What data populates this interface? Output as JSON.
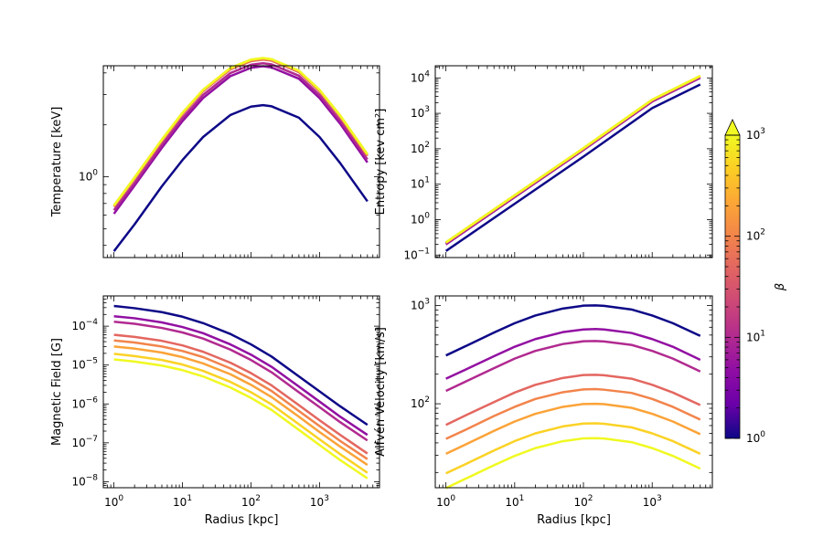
{
  "colors": {
    "beta_palette": [
      "#0d0887",
      "#6a00a8",
      "#8f0da4",
      "#b12a90",
      "#cc4778",
      "#e16462",
      "#f2844b",
      "#fca636",
      "#fcce25",
      "#f0f921"
    ]
  },
  "colorbar": {
    "label": "β",
    "tick_labels": [
      "10",
      "10",
      "10",
      "10"
    ],
    "tick_exponents": [
      "0",
      "1",
      "2",
      "3"
    ],
    "scale": "log",
    "range": [
      1,
      1000
    ],
    "extend": "max",
    "colormap": "plasma"
  },
  "chart_data": [
    {
      "type": "line",
      "panel": "top-left",
      "xlabel": "",
      "ylabel": "Temperature [keV]",
      "xscale": "log",
      "yscale": "log",
      "xlim": [
        0.7,
        7500
      ],
      "ylim": [
        0.34,
        4.4
      ],
      "ytick_labels": [
        "10"
      ],
      "ytick_exponents": [
        "0"
      ],
      "x": [
        1,
        2,
        5,
        10,
        20,
        50,
        100,
        150,
        200,
        500,
        1000,
        2000,
        5000
      ],
      "series": [
        {
          "beta": 1,
          "values": [
            0.37,
            0.53,
            0.88,
            1.25,
            1.7,
            2.28,
            2.55,
            2.6,
            2.56,
            2.2,
            1.7,
            1.2,
            0.72
          ]
        },
        {
          "beta": 5,
          "values": [
            0.61,
            0.89,
            1.47,
            2.1,
            2.86,
            3.83,
            4.28,
            4.37,
            4.3,
            3.7,
            2.86,
            2.03,
            1.21
          ]
        },
        {
          "beta": 10,
          "values": [
            0.64,
            0.92,
            1.53,
            2.19,
            2.98,
            3.99,
            4.46,
            4.55,
            4.48,
            3.85,
            2.98,
            2.11,
            1.26
          ]
        },
        {
          "beta": 50,
          "values": [
            0.67,
            0.97,
            1.61,
            2.3,
            3.13,
            4.19,
            4.68,
            4.78,
            4.71,
            4.04,
            3.13,
            2.22,
            1.32
          ]
        },
        {
          "beta": 100,
          "values": [
            0.68,
            0.98,
            1.63,
            2.33,
            3.17,
            4.24,
            4.74,
            4.84,
            4.77,
            4.09,
            3.17,
            2.25,
            1.34
          ]
        },
        {
          "beta": 200,
          "values": [
            0.68,
            0.99,
            1.64,
            2.34,
            3.18,
            4.26,
            4.76,
            4.86,
            4.79,
            4.11,
            3.18,
            2.26,
            1.34
          ]
        },
        {
          "beta": 500,
          "values": [
            0.68,
            0.99,
            1.64,
            2.35,
            3.19,
            4.27,
            4.77,
            4.87,
            4.8,
            4.12,
            3.19,
            2.26,
            1.35
          ]
        },
        {
          "beta": 1000,
          "values": [
            0.68,
            0.99,
            1.64,
            2.35,
            3.19,
            4.27,
            4.78,
            4.88,
            4.8,
            4.12,
            3.19,
            2.27,
            1.35
          ]
        }
      ]
    },
    {
      "type": "line",
      "panel": "top-right",
      "xlabel": "",
      "ylabel": "Entropy [kev cm²]",
      "xscale": "log",
      "yscale": "log",
      "xlim": [
        0.7,
        7500
      ],
      "ylim": [
        0.085,
        22000
      ],
      "ytick_labels": [
        "10",
        "10",
        "10",
        "10",
        "10",
        "10"
      ],
      "ytick_exponents": [
        "−1",
        "0",
        "1",
        "2",
        "3",
        "4"
      ],
      "x": [
        1,
        10,
        100,
        1000,
        5000
      ],
      "series": [
        {
          "beta": 1,
          "values": [
            0.13,
            2.8,
            60,
            1400,
            6500
          ]
        },
        {
          "beta": 5,
          "values": [
            0.2,
            4.3,
            92,
            2150,
            10000
          ]
        },
        {
          "beta": 10,
          "values": [
            0.21,
            4.5,
            96,
            2250,
            10500
          ]
        },
        {
          "beta": 50,
          "values": [
            0.22,
            4.7,
            100,
            2350,
            11000
          ]
        },
        {
          "beta": 100,
          "values": [
            0.225,
            4.8,
            102,
            2390,
            11200
          ]
        },
        {
          "beta": 200,
          "values": [
            0.227,
            4.85,
            103,
            2410,
            11300
          ]
        },
        {
          "beta": 500,
          "values": [
            0.228,
            4.87,
            103.5,
            2420,
            11350
          ]
        },
        {
          "beta": 1000,
          "values": [
            0.229,
            4.88,
            104,
            2425,
            11380
          ]
        }
      ]
    },
    {
      "type": "line",
      "panel": "bottom-left",
      "xlabel": "Radius [kpc]",
      "ylabel": "Magnetic Field [G]",
      "xscale": "log",
      "yscale": "log",
      "xlim": [
        0.7,
        7500
      ],
      "ylim": [
        7e-09,
        0.0006
      ],
      "xtick_labels": [
        "10",
        "10",
        "10",
        "10"
      ],
      "xtick_exponents": [
        "0",
        "1",
        "2",
        "3"
      ],
      "ytick_labels": [
        "10",
        "10",
        "10",
        "10",
        "10"
      ],
      "ytick_exponents": [
        "−8",
        "−7",
        "−6",
        "−5",
        "−4"
      ],
      "x": [
        1,
        2,
        5,
        10,
        20,
        50,
        100,
        200,
        500,
        1000,
        2000,
        5000
      ],
      "series": [
        {
          "beta": 1,
          "values": [
            0.00033,
            0.00029,
            0.00023,
            0.000175,
            0.00012,
            6.3e-05,
            3.4e-05,
            1.65e-05,
            5.1e-06,
            2.1e-06,
            8.7e-07,
            2.9e-07
          ]
        },
        {
          "beta": 5,
          "values": [
            0.00018,
            0.00016,
            0.000125,
            9.5e-05,
            6.6e-05,
            3.4e-05,
            1.85e-05,
            9e-06,
            2.8e-06,
            1.15e-06,
            4.7e-07,
            1.6e-07
          ]
        },
        {
          "beta": 10,
          "values": [
            0.00013,
            0.000115,
            9e-05,
            6.9e-05,
            4.8e-05,
            2.5e-05,
            1.35e-05,
            6.5e-06,
            2e-06,
            8.3e-07,
            3.4e-07,
            1.15e-07
          ]
        },
        {
          "beta": 50,
          "values": [
            6e-05,
            5.3e-05,
            4.2e-05,
            3.2e-05,
            2.2e-05,
            1.15e-05,
            6.2e-06,
            3e-06,
            9.3e-07,
            3.8e-07,
            1.6e-07,
            5.3e-08
          ]
        },
        {
          "beta": 100,
          "values": [
            4.3e-05,
            3.8e-05,
            3e-05,
            2.3e-05,
            1.6e-05,
            8.2e-06,
            4.4e-06,
            2.15e-06,
            6.6e-07,
            2.7e-07,
            1.12e-07,
            3.8e-08
          ]
        },
        {
          "beta": 200,
          "values": [
            3e-05,
            2.65e-05,
            2.1e-05,
            1.6e-05,
            1.1e-05,
            5.8e-06,
            3.1e-06,
            1.5e-06,
            4.7e-07,
            1.9e-07,
            8e-08,
            2.7e-08
          ]
        },
        {
          "beta": 500,
          "values": [
            1.95e-05,
            1.7e-05,
            1.35e-05,
            1.03e-05,
            7.1e-06,
            3.7e-06,
            2e-06,
            9.7e-07,
            3e-07,
            1.23e-07,
            5.1e-08,
            1.7e-08
          ]
        },
        {
          "beta": 1000,
          "values": [
            1.4e-05,
            1.23e-05,
            9.7e-06,
            7.4e-06,
            5.1e-06,
            2.65e-06,
            1.43e-06,
            7e-07,
            2.15e-07,
            8.8e-08,
            3.6e-08,
            1.22e-08
          ]
        }
      ]
    },
    {
      "type": "line",
      "panel": "bottom-right",
      "xlabel": "Radius [kpc]",
      "ylabel": "Alfvén Velocity [km/s]",
      "xscale": "log",
      "yscale": "log",
      "xlim": [
        0.7,
        7500
      ],
      "ylim": [
        14,
        1250
      ],
      "xtick_labels": [
        "10",
        "10",
        "10",
        "10"
      ],
      "xtick_exponents": [
        "0",
        "1",
        "2",
        "3"
      ],
      "ytick_labels": [
        "10",
        "10"
      ],
      "ytick_exponents": [
        "2",
        "3"
      ],
      "x": [
        1,
        2,
        5,
        10,
        20,
        50,
        100,
        150,
        200,
        500,
        1000,
        2000,
        5000
      ],
      "series": [
        {
          "beta": 1,
          "values": [
            310,
            390,
            530,
            660,
            790,
            930,
            995,
            1000,
            990,
            910,
            790,
            660,
            490
          ]
        },
        {
          "beta": 5,
          "values": [
            180,
            225,
            305,
            380,
            455,
            535,
            570,
            575,
            570,
            525,
            455,
            380,
            280
          ]
        },
        {
          "beta": 10,
          "values": [
            135,
            170,
            230,
            288,
            345,
            405,
            432,
            435,
            430,
            397,
            345,
            288,
            213
          ]
        },
        {
          "beta": 50,
          "values": [
            61,
            77,
            104,
            130,
            156,
            183,
            196,
            197,
            195,
            180,
            156,
            130,
            97
          ]
        },
        {
          "beta": 100,
          "values": [
            44,
            55,
            75,
            93,
            112,
            131,
            140,
            141,
            139,
            129,
            112,
            93,
            69
          ]
        },
        {
          "beta": 200,
          "values": [
            31,
            39,
            53,
            66,
            79,
            93,
            99.5,
            100,
            99,
            91,
            79,
            66,
            49
          ]
        },
        {
          "beta": 500,
          "values": [
            19.6,
            24.6,
            33.5,
            41.7,
            50,
            58.8,
            62.9,
            63.2,
            62.6,
            57.6,
            50,
            41.7,
            31
          ]
        },
        {
          "beta": 1000,
          "values": [
            13.9,
            17.5,
            23.7,
            29.5,
            35.4,
            41.6,
            44.5,
            44.7,
            44.3,
            40.7,
            35.4,
            29.5,
            21.9
          ]
        }
      ]
    }
  ]
}
